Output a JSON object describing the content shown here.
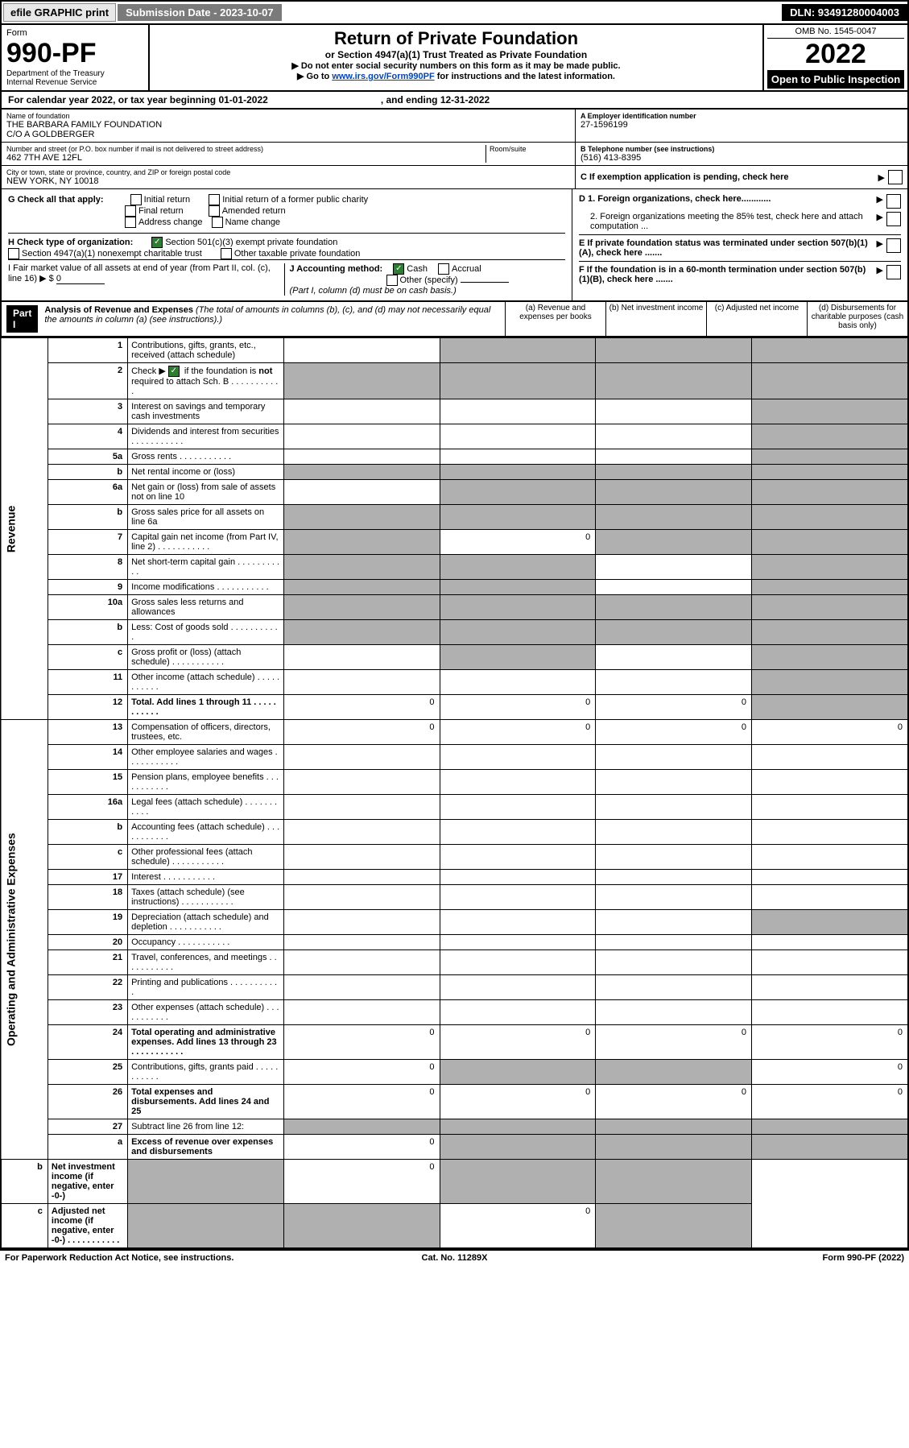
{
  "topbar": {
    "efile": "efile GRAPHIC print",
    "subdate_label": "Submission Date - 2023-10-07",
    "dln": "DLN: 93491280004003"
  },
  "header": {
    "form": "Form",
    "number": "990-PF",
    "dept": "Department of the Treasury",
    "irs": "Internal Revenue Service",
    "title": "Return of Private Foundation",
    "subtitle": "or Section 4947(a)(1) Trust Treated as Private Foundation",
    "note1": "▶ Do not enter social security numbers on this form as it may be made public.",
    "note2": "▶ Go to ",
    "note2_link": "www.irs.gov/Form990PF",
    "note2_b": " for instructions and the latest information.",
    "omb": "OMB No. 1545-0047",
    "year": "2022",
    "open": "Open to Public Inspection"
  },
  "cy": {
    "a": "For calendar year 2022, or tax year beginning 01-01-2022",
    "b": ", and ending 12-31-2022"
  },
  "name": {
    "label": "Name of foundation",
    "v1": "THE BARBARA FAMILY FOUNDATION",
    "v2": "C/O A GOLDBERGER"
  },
  "ein": {
    "label": "A Employer identification number",
    "v": "27-1596199"
  },
  "addr": {
    "label": "Number and street (or P.O. box number if mail is not delivered to street address)",
    "room": "Room/suite",
    "v": "462 7TH AVE 12FL"
  },
  "tel": {
    "label": "B Telephone number (see instructions)",
    "v": "(516) 413-8395"
  },
  "city": {
    "label": "City or town, state or province, country, and ZIP or foreign postal code",
    "v": "NEW YORK, NY  10018"
  },
  "c": {
    "label": "C If exemption application is pending, check here"
  },
  "g": {
    "label": "G Check all that apply:",
    "o1": "Initial return",
    "o2": "Final return",
    "o3": "Address change",
    "o4": "Initial return of a former public charity",
    "o5": "Amended return",
    "o6": "Name change"
  },
  "d": {
    "d1": "D 1. Foreign organizations, check here............",
    "d2": "2. Foreign organizations meeting the 85% test, check here and attach computation ..."
  },
  "h": {
    "label": "H Check type of organization:",
    "o1": "Section 501(c)(3) exempt private foundation",
    "o2": "Section 4947(a)(1) nonexempt charitable trust",
    "o3": "Other taxable private foundation"
  },
  "e": {
    "label": "E If private foundation status was terminated under section 507(b)(1)(A), check here ......."
  },
  "i": {
    "label": "I Fair market value of all assets at end of year (from Part II, col. (c), line 16) ▶ $",
    "v": "0"
  },
  "j": {
    "label": "J Accounting method:",
    "o1": "Cash",
    "o2": "Accrual",
    "o3": "Other (specify)",
    "note": "(Part I, column (d) must be on cash basis.)"
  },
  "f": {
    "label": "F If the foundation is in a 60-month termination under section 507(b)(1)(B), check here ......."
  },
  "part1": {
    "label": "Part I",
    "title": "Analysis of Revenue and Expenses",
    "note": "(The total of amounts in columns (b), (c), and (d) may not necessarily equal the amounts in column (a) (see instructions).)",
    "ca": "(a)   Revenue and expenses per books",
    "cb": "(b)   Net investment income",
    "cc": "(c)   Adjusted net income",
    "cd": "(d)   Disbursements for charitable purposes (cash basis only)"
  },
  "side": {
    "rev": "Revenue",
    "exp": "Operating and Administrative Expenses"
  },
  "rows": [
    {
      "n": "1",
      "d": "Contributions, gifts, grants, etc., received (attach schedule)",
      "a": "",
      "b": "s",
      "c": "s",
      "dd": "s"
    },
    {
      "n": "2",
      "d": "Check ▶ ✓ if the foundation is not required to attach Sch. B",
      "dots": true,
      "a": "s",
      "b": "s",
      "c": "s",
      "dd": "s"
    },
    {
      "n": "3",
      "d": "Interest on savings and temporary cash investments",
      "a": "",
      "b": "",
      "c": "",
      "dd": "s"
    },
    {
      "n": "4",
      "d": "Dividends and interest from securities",
      "dots": true,
      "a": "",
      "b": "",
      "c": "",
      "dd": "s"
    },
    {
      "n": "5a",
      "d": "Gross rents",
      "dots": true,
      "a": "",
      "b": "",
      "c": "",
      "dd": "s"
    },
    {
      "n": "b",
      "d": "Net rental income or (loss)",
      "a": "s",
      "b": "s",
      "c": "s",
      "dd": "s"
    },
    {
      "n": "6a",
      "d": "Net gain or (loss) from sale of assets not on line 10",
      "a": "",
      "b": "s",
      "c": "s",
      "dd": "s"
    },
    {
      "n": "b",
      "d": "Gross sales price for all assets on line 6a",
      "a": "s",
      "b": "s",
      "c": "s",
      "dd": "s"
    },
    {
      "n": "7",
      "d": "Capital gain net income (from Part IV, line 2)",
      "dots": true,
      "a": "s",
      "b": "0",
      "c": "s",
      "dd": "s"
    },
    {
      "n": "8",
      "d": "Net short-term capital gain",
      "dots": true,
      "a": "s",
      "b": "s",
      "c": "",
      "dd": "s"
    },
    {
      "n": "9",
      "d": "Income modifications",
      "dots": true,
      "a": "s",
      "b": "s",
      "c": "",
      "dd": "s"
    },
    {
      "n": "10a",
      "d": "Gross sales less returns and allowances",
      "a": "s",
      "b": "s",
      "c": "s",
      "dd": "s"
    },
    {
      "n": "b",
      "d": "Less: Cost of goods sold",
      "dots": true,
      "a": "s",
      "b": "s",
      "c": "s",
      "dd": "s"
    },
    {
      "n": "c",
      "d": "Gross profit or (loss) (attach schedule)",
      "dots": true,
      "a": "",
      "b": "s",
      "c": "",
      "dd": "s"
    },
    {
      "n": "11",
      "d": "Other income (attach schedule)",
      "dots": true,
      "a": "",
      "b": "",
      "c": "",
      "dd": "s"
    },
    {
      "n": "12",
      "d": "Total. Add lines 1 through 11",
      "dots": true,
      "bold": true,
      "a": "0",
      "b": "0",
      "c": "0",
      "dd": "s"
    },
    {
      "n": "13",
      "d": "Compensation of officers, directors, trustees, etc.",
      "a": "0",
      "b": "0",
      "c": "0",
      "dd": "0"
    },
    {
      "n": "14",
      "d": "Other employee salaries and wages",
      "dots": true,
      "a": "",
      "b": "",
      "c": "",
      "dd": ""
    },
    {
      "n": "15",
      "d": "Pension plans, employee benefits",
      "dots": true,
      "a": "",
      "b": "",
      "c": "",
      "dd": ""
    },
    {
      "n": "16a",
      "d": "Legal fees (attach schedule)",
      "dots": true,
      "a": "",
      "b": "",
      "c": "",
      "dd": ""
    },
    {
      "n": "b",
      "d": "Accounting fees (attach schedule)",
      "dots": true,
      "a": "",
      "b": "",
      "c": "",
      "dd": ""
    },
    {
      "n": "c",
      "d": "Other professional fees (attach schedule)",
      "dots": true,
      "a": "",
      "b": "",
      "c": "",
      "dd": ""
    },
    {
      "n": "17",
      "d": "Interest",
      "dots": true,
      "a": "",
      "b": "",
      "c": "",
      "dd": ""
    },
    {
      "n": "18",
      "d": "Taxes (attach schedule) (see instructions)",
      "dots": true,
      "a": "",
      "b": "",
      "c": "",
      "dd": ""
    },
    {
      "n": "19",
      "d": "Depreciation (attach schedule) and depletion",
      "dots": true,
      "a": "",
      "b": "",
      "c": "",
      "dd": "s"
    },
    {
      "n": "20",
      "d": "Occupancy",
      "dots": true,
      "a": "",
      "b": "",
      "c": "",
      "dd": ""
    },
    {
      "n": "21",
      "d": "Travel, conferences, and meetings",
      "dots": true,
      "a": "",
      "b": "",
      "c": "",
      "dd": ""
    },
    {
      "n": "22",
      "d": "Printing and publications",
      "dots": true,
      "a": "",
      "b": "",
      "c": "",
      "dd": ""
    },
    {
      "n": "23",
      "d": "Other expenses (attach schedule)",
      "dots": true,
      "a": "",
      "b": "",
      "c": "",
      "dd": ""
    },
    {
      "n": "24",
      "d": "Total operating and administrative expenses. Add lines 13 through 23",
      "dots": true,
      "bold": true,
      "a": "0",
      "b": "0",
      "c": "0",
      "dd": "0"
    },
    {
      "n": "25",
      "d": "Contributions, gifts, grants paid",
      "dots": true,
      "a": "0",
      "b": "s",
      "c": "s",
      "dd": "0"
    },
    {
      "n": "26",
      "d": "Total expenses and disbursements. Add lines 24 and 25",
      "bold": true,
      "a": "0",
      "b": "0",
      "c": "0",
      "dd": "0"
    },
    {
      "n": "27",
      "d": "Subtract line 26 from line 12:",
      "a": "s",
      "b": "s",
      "c": "s",
      "dd": "s"
    },
    {
      "n": "a",
      "d": "Excess of revenue over expenses and disbursements",
      "bold": true,
      "a": "0",
      "b": "s",
      "c": "s",
      "dd": "s"
    },
    {
      "n": "b",
      "d": "Net investment income (if negative, enter -0-)",
      "bold": true,
      "a": "s",
      "b": "0",
      "c": "s",
      "dd": "s"
    },
    {
      "n": "c",
      "d": "Adjusted net income (if negative, enter -0-)",
      "dots": true,
      "bold": true,
      "a": "s",
      "b": "s",
      "c": "0",
      "dd": "s"
    }
  ],
  "foot": {
    "l": "For Paperwork Reduction Act Notice, see instructions.",
    "c": "Cat. No. 11289X",
    "r": "Form 990-PF (2022)"
  }
}
